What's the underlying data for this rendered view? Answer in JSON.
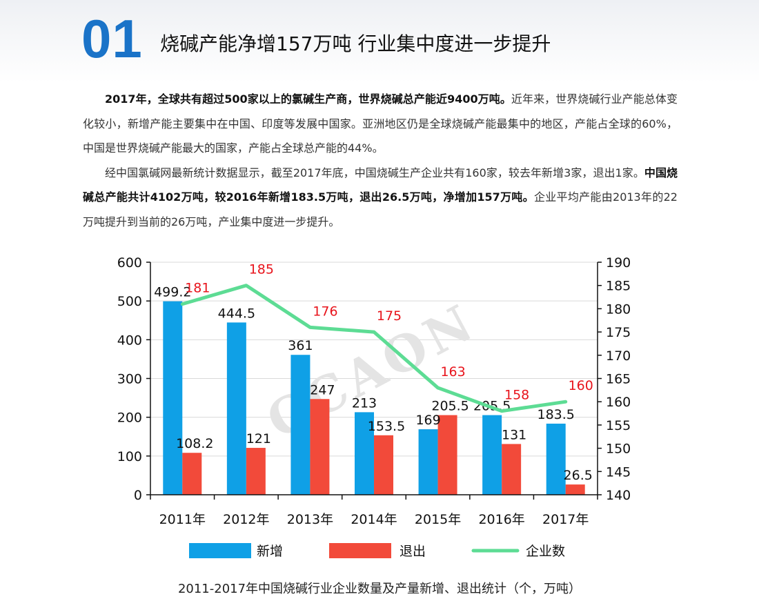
{
  "header": {
    "section_number": "01",
    "title": "烧碱产能净增157万吨 行业集中度进一步提升"
  },
  "paragraphs": [
    [
      {
        "text": "2017年，全球共有超过500家以上的氯碱生产商，世界烧碱总产能近9400万吨。",
        "bold": true
      },
      {
        "text": "近年来，世界烧碱行业产能总体变化较小，新增产能主要集中在中国、印度等发展中国家。亚洲地区仍是全球烧碱产能最集中的地区，产能占全球的60%，中国是世界烧碱产能最大的国家，产能占全球总产能的44%。",
        "bold": false
      }
    ],
    [
      {
        "text": "经中国氯碱网最新统计数据显示，截至2017年底，中国烧碱生产企业共有160家，较去年新增3家，退出1家。",
        "bold": false
      },
      {
        "text": "中国烧碱总产能共计4102万吨，较2016年新增183.5万吨，退出26.5万吨，净增加157万吨。",
        "bold": true
      },
      {
        "text": "企业平均产能由2013年的22万吨提升到当前的26万吨，产业集中度进一步提升。",
        "bold": false
      }
    ]
  ],
  "chart_data": {
    "type": "bar",
    "categories": [
      "2011年",
      "2012年",
      "2013年",
      "2014年",
      "2015年",
      "2016年",
      "2017年"
    ],
    "series": [
      {
        "name": "新增",
        "type": "bar",
        "axis": "left",
        "color": "#0fa0e6",
        "label_color": "#111111",
        "values": [
          499.2,
          444.5,
          361,
          213,
          169,
          205.5,
          183.5
        ],
        "labels": [
          "499.2",
          "444.5",
          "361",
          "213",
          "169",
          "205.5",
          "183.5"
        ]
      },
      {
        "name": "退出",
        "type": "bar",
        "axis": "right_bar",
        "color": "#f24a3a",
        "label_color": "#111111",
        "values": [
          108.2,
          121,
          247,
          153.5,
          205.5,
          131,
          26.5
        ],
        "labels": [
          "108.2",
          "121",
          "247",
          "153.5",
          "205.5",
          "131",
          "26.5"
        ]
      },
      {
        "name": "企业数",
        "type": "line",
        "axis": "right",
        "color": "#5ddc94",
        "label_color": "#e8141c",
        "values": [
          181,
          185,
          176,
          175,
          163,
          158,
          160
        ],
        "labels": [
          "181",
          "185",
          "176",
          "175",
          "163",
          "158",
          "160"
        ]
      }
    ],
    "ylim_left": [
      0,
      600
    ],
    "yticks_left": [
      "0",
      "100",
      "200",
      "300",
      "400",
      "500",
      "600"
    ],
    "ylim_right": [
      140,
      190
    ],
    "yticks_right": [
      "140",
      "145",
      "150",
      "155",
      "160",
      "165",
      "170",
      "175",
      "180",
      "185",
      "190"
    ],
    "grid": true,
    "legend_position": "bottom",
    "watermark": "CCAON",
    "title": "2011-2017年中国烧碱行业企业数量及产量新增、退出统计（个，万吨）"
  }
}
